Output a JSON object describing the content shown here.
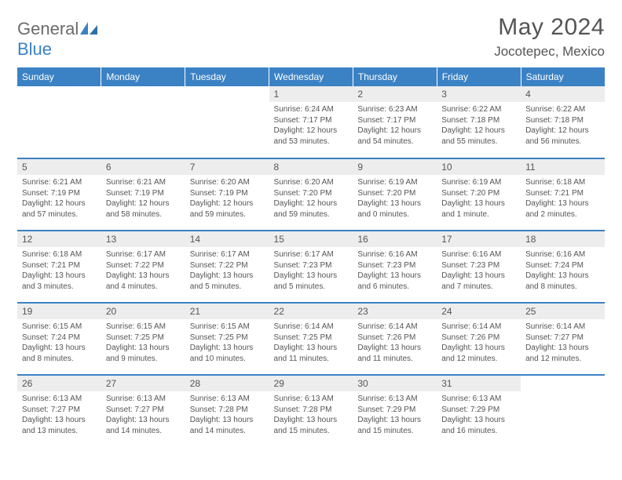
{
  "logo": {
    "general": "General",
    "blue": "Blue"
  },
  "title": "May 2024",
  "location": "Jocotepec, Mexico",
  "dayHeaders": [
    "Sunday",
    "Monday",
    "Tuesday",
    "Wednesday",
    "Thursday",
    "Friday",
    "Saturday"
  ],
  "colors": {
    "header_bg": "#3b82c4",
    "header_text": "#ffffff",
    "daynum_bg": "#ededed",
    "text": "#555555",
    "logo_gray": "#6b6b6b",
    "logo_blue": "#3b82c4",
    "row_border": "#3b82c4",
    "page_bg": "#ffffff"
  },
  "typography": {
    "title_fontsize": 30,
    "location_fontsize": 17,
    "dayheader_fontsize": 12,
    "daynum_fontsize": 12,
    "cell_fontsize": 10,
    "logo_fontsize": 22,
    "font_family": "Arial"
  },
  "layout": {
    "columns": 7,
    "rows": 5,
    "first_day_column_index": 3,
    "days_in_month": 31
  },
  "days": [
    {
      "n": 1,
      "sunrise": "6:24 AM",
      "sunset": "7:17 PM",
      "daylight": "12 hours and 53 minutes."
    },
    {
      "n": 2,
      "sunrise": "6:23 AM",
      "sunset": "7:17 PM",
      "daylight": "12 hours and 54 minutes."
    },
    {
      "n": 3,
      "sunrise": "6:22 AM",
      "sunset": "7:18 PM",
      "daylight": "12 hours and 55 minutes."
    },
    {
      "n": 4,
      "sunrise": "6:22 AM",
      "sunset": "7:18 PM",
      "daylight": "12 hours and 56 minutes."
    },
    {
      "n": 5,
      "sunrise": "6:21 AM",
      "sunset": "7:19 PM",
      "daylight": "12 hours and 57 minutes."
    },
    {
      "n": 6,
      "sunrise": "6:21 AM",
      "sunset": "7:19 PM",
      "daylight": "12 hours and 58 minutes."
    },
    {
      "n": 7,
      "sunrise": "6:20 AM",
      "sunset": "7:19 PM",
      "daylight": "12 hours and 59 minutes."
    },
    {
      "n": 8,
      "sunrise": "6:20 AM",
      "sunset": "7:20 PM",
      "daylight": "12 hours and 59 minutes."
    },
    {
      "n": 9,
      "sunrise": "6:19 AM",
      "sunset": "7:20 PM",
      "daylight": "13 hours and 0 minutes."
    },
    {
      "n": 10,
      "sunrise": "6:19 AM",
      "sunset": "7:20 PM",
      "daylight": "13 hours and 1 minute."
    },
    {
      "n": 11,
      "sunrise": "6:18 AM",
      "sunset": "7:21 PM",
      "daylight": "13 hours and 2 minutes."
    },
    {
      "n": 12,
      "sunrise": "6:18 AM",
      "sunset": "7:21 PM",
      "daylight": "13 hours and 3 minutes."
    },
    {
      "n": 13,
      "sunrise": "6:17 AM",
      "sunset": "7:22 PM",
      "daylight": "13 hours and 4 minutes."
    },
    {
      "n": 14,
      "sunrise": "6:17 AM",
      "sunset": "7:22 PM",
      "daylight": "13 hours and 5 minutes."
    },
    {
      "n": 15,
      "sunrise": "6:17 AM",
      "sunset": "7:23 PM",
      "daylight": "13 hours and 5 minutes."
    },
    {
      "n": 16,
      "sunrise": "6:16 AM",
      "sunset": "7:23 PM",
      "daylight": "13 hours and 6 minutes."
    },
    {
      "n": 17,
      "sunrise": "6:16 AM",
      "sunset": "7:23 PM",
      "daylight": "13 hours and 7 minutes."
    },
    {
      "n": 18,
      "sunrise": "6:16 AM",
      "sunset": "7:24 PM",
      "daylight": "13 hours and 8 minutes."
    },
    {
      "n": 19,
      "sunrise": "6:15 AM",
      "sunset": "7:24 PM",
      "daylight": "13 hours and 8 minutes."
    },
    {
      "n": 20,
      "sunrise": "6:15 AM",
      "sunset": "7:25 PM",
      "daylight": "13 hours and 9 minutes."
    },
    {
      "n": 21,
      "sunrise": "6:15 AM",
      "sunset": "7:25 PM",
      "daylight": "13 hours and 10 minutes."
    },
    {
      "n": 22,
      "sunrise": "6:14 AM",
      "sunset": "7:25 PM",
      "daylight": "13 hours and 11 minutes."
    },
    {
      "n": 23,
      "sunrise": "6:14 AM",
      "sunset": "7:26 PM",
      "daylight": "13 hours and 11 minutes."
    },
    {
      "n": 24,
      "sunrise": "6:14 AM",
      "sunset": "7:26 PM",
      "daylight": "13 hours and 12 minutes."
    },
    {
      "n": 25,
      "sunrise": "6:14 AM",
      "sunset": "7:27 PM",
      "daylight": "13 hours and 12 minutes."
    },
    {
      "n": 26,
      "sunrise": "6:13 AM",
      "sunset": "7:27 PM",
      "daylight": "13 hours and 13 minutes."
    },
    {
      "n": 27,
      "sunrise": "6:13 AM",
      "sunset": "7:27 PM",
      "daylight": "13 hours and 14 minutes."
    },
    {
      "n": 28,
      "sunrise": "6:13 AM",
      "sunset": "7:28 PM",
      "daylight": "13 hours and 14 minutes."
    },
    {
      "n": 29,
      "sunrise": "6:13 AM",
      "sunset": "7:28 PM",
      "daylight": "13 hours and 15 minutes."
    },
    {
      "n": 30,
      "sunrise": "6:13 AM",
      "sunset": "7:29 PM",
      "daylight": "13 hours and 15 minutes."
    },
    {
      "n": 31,
      "sunrise": "6:13 AM",
      "sunset": "7:29 PM",
      "daylight": "13 hours and 16 minutes."
    }
  ],
  "labels": {
    "sunrise": "Sunrise:",
    "sunset": "Sunset:",
    "daylight": "Daylight:"
  }
}
